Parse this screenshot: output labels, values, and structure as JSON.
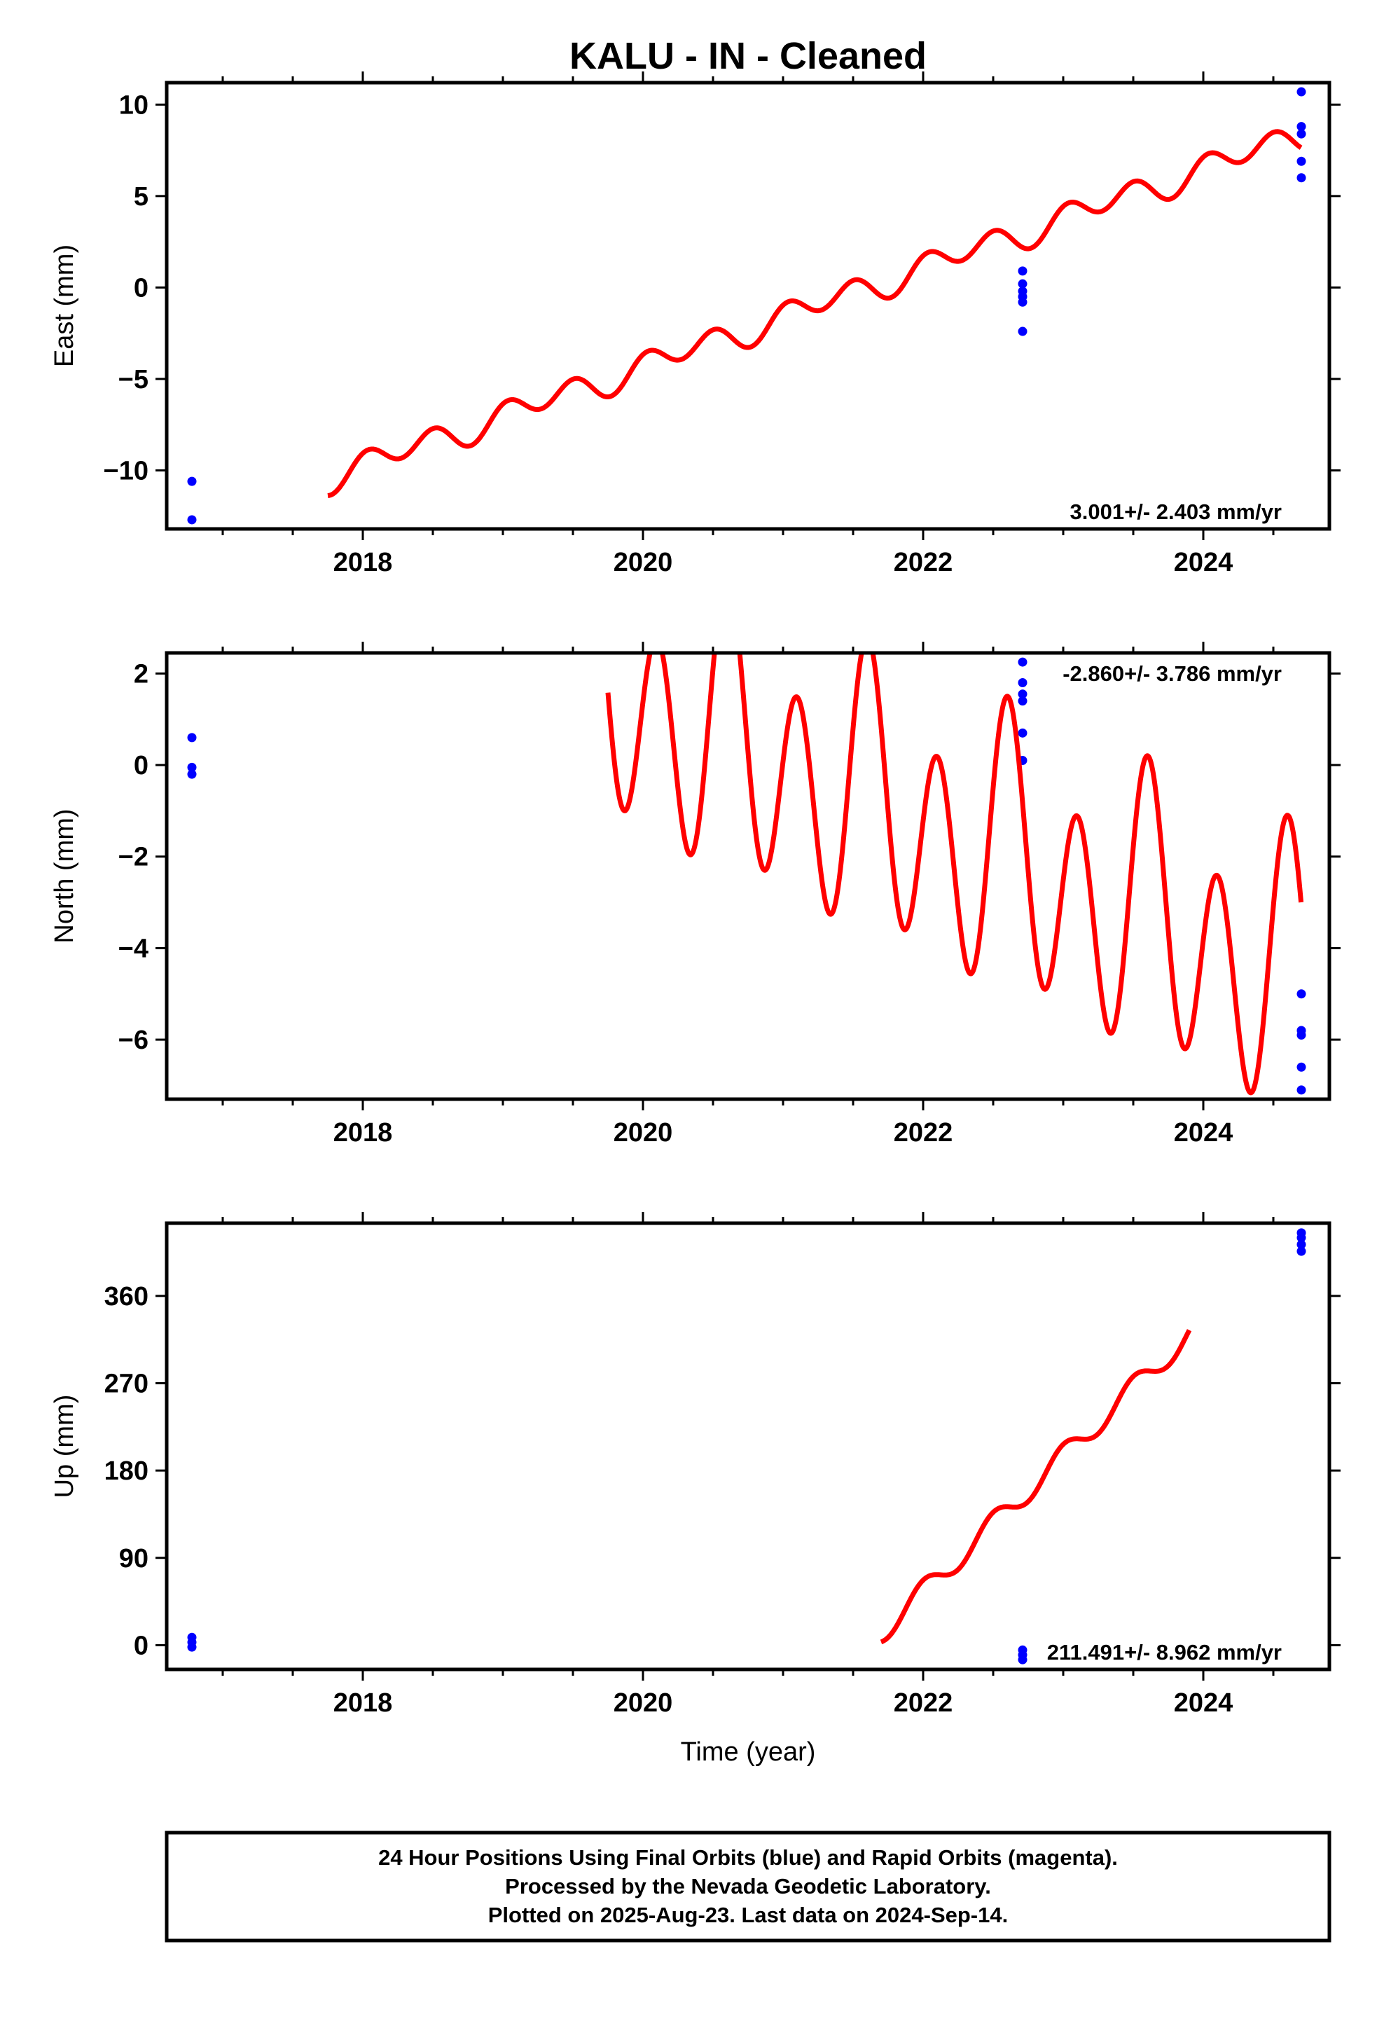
{
  "chart_data": [
    {
      "type": "scatter",
      "title": "KALU  - IN - Cleaned",
      "ylabel": "East (mm)",
      "xlabel": "",
      "xlim": [
        2016.6,
        2024.9
      ],
      "ylim": [
        -13.2,
        11.2
      ],
      "xticks": [
        2018,
        2020,
        2022,
        2024
      ],
      "yticks": [
        -10,
        -5,
        0,
        5,
        10
      ],
      "rate_label": "3.001+/- 2.403 mm/yr",
      "series": [
        {
          "color": "#0000ff",
          "points": [
            [
              2016.78,
              -10.6
            ],
            [
              2016.78,
              -12.7
            ],
            [
              2022.71,
              0.9
            ],
            [
              2022.71,
              0.2
            ],
            [
              2022.71,
              -0.2
            ],
            [
              2022.71,
              -0.5
            ],
            [
              2022.71,
              -0.8
            ],
            [
              2022.71,
              -2.4
            ],
            [
              2024.7,
              10.7
            ],
            [
              2024.7,
              8.8
            ],
            [
              2024.7,
              8.4
            ],
            [
              2024.7,
              6.9
            ],
            [
              2024.7,
              6.0
            ]
          ]
        },
        {
          "color": "#ff0000",
          "model": {
            "start": 2017.75,
            "end": 2024.7,
            "offset": 1.08,
            "rate": 2.7,
            "t0": 2022.0,
            "annual_amp": 0.33,
            "annual_phase": 0.0,
            "semi_amp": 0.68,
            "semi_phase": 1.3,
            "clamp_min": -13.2
          }
        }
      ]
    },
    {
      "type": "scatter",
      "ylabel": "North (mm)",
      "xlabel": "",
      "xlim": [
        2016.6,
        2024.9
      ],
      "ylim": [
        -7.3,
        2.45
      ],
      "xticks": [
        2018,
        2020,
        2022,
        2024
      ],
      "yticks": [
        -6,
        -4,
        -2,
        0,
        2
      ],
      "rate_label": "-2.860+/- 3.786 mm/yr",
      "series": [
        {
          "color": "#0000ff",
          "points": [
            [
              2016.78,
              0.6
            ],
            [
              2016.78,
              -0.05
            ],
            [
              2016.78,
              -0.2
            ],
            [
              2022.71,
              2.25
            ],
            [
              2022.71,
              1.8
            ],
            [
              2022.71,
              1.55
            ],
            [
              2022.71,
              1.4
            ],
            [
              2022.71,
              0.7
            ],
            [
              2022.71,
              0.1
            ],
            [
              2024.7,
              -5.0
            ],
            [
              2024.7,
              -5.8
            ],
            [
              2024.7,
              -5.9
            ],
            [
              2024.7,
              -6.6
            ],
            [
              2024.7,
              -7.1
            ]
          ]
        },
        {
          "color": "#ff0000",
          "model": {
            "start": 2019.75,
            "end": 2024.7,
            "offset": -1.3,
            "rate": -1.3,
            "t0": 2022.0,
            "annual_amp": 1.0,
            "annual_phase": 3.9,
            "semi_amp": 2.6,
            "semi_phase": 0.3,
            "clamp_min": -7.3,
            "clamp_max": 2.45
          }
        }
      ]
    },
    {
      "type": "scatter",
      "ylabel": "Up (mm)",
      "xlabel": "Time (year)",
      "xlim": [
        2016.6,
        2024.9
      ],
      "ylim": [
        -25,
        435
      ],
      "xticks": [
        2018,
        2020,
        2022,
        2024
      ],
      "yticks": [
        0,
        90,
        180,
        270,
        360
      ],
      "rate_label": "211.491+/- 8.962 mm/yr",
      "series": [
        {
          "color": "#0000ff",
          "points": [
            [
              2016.78,
              8
            ],
            [
              2016.78,
              3
            ],
            [
              2016.78,
              -2
            ],
            [
              2022.71,
              -5
            ],
            [
              2022.71,
              -10
            ],
            [
              2022.71,
              -15
            ],
            [
              2024.7,
              425
            ],
            [
              2024.7,
              420
            ],
            [
              2024.7,
              413
            ],
            [
              2024.7,
              406
            ]
          ]
        },
        {
          "color": "#ff0000",
          "model": {
            "start": 2021.7,
            "end": 2023.9,
            "offset": 55,
            "rate": 140,
            "t0": 2022.0,
            "annual_amp": 0,
            "annual_phase": 0,
            "semi_amp": 12,
            "semi_phase": 1.57,
            "clamp_min": -25,
            "clamp_max": 435
          }
        }
      ]
    }
  ],
  "footer": {
    "line1": "24 Hour Positions Using Final Orbits (blue) and Rapid Orbits (magenta).",
    "line2": "Processed by the Nevada Geodetic Laboratory.",
    "line3": "Plotted on 2025-Aug-23. Last data on 2024-Sep-14."
  }
}
